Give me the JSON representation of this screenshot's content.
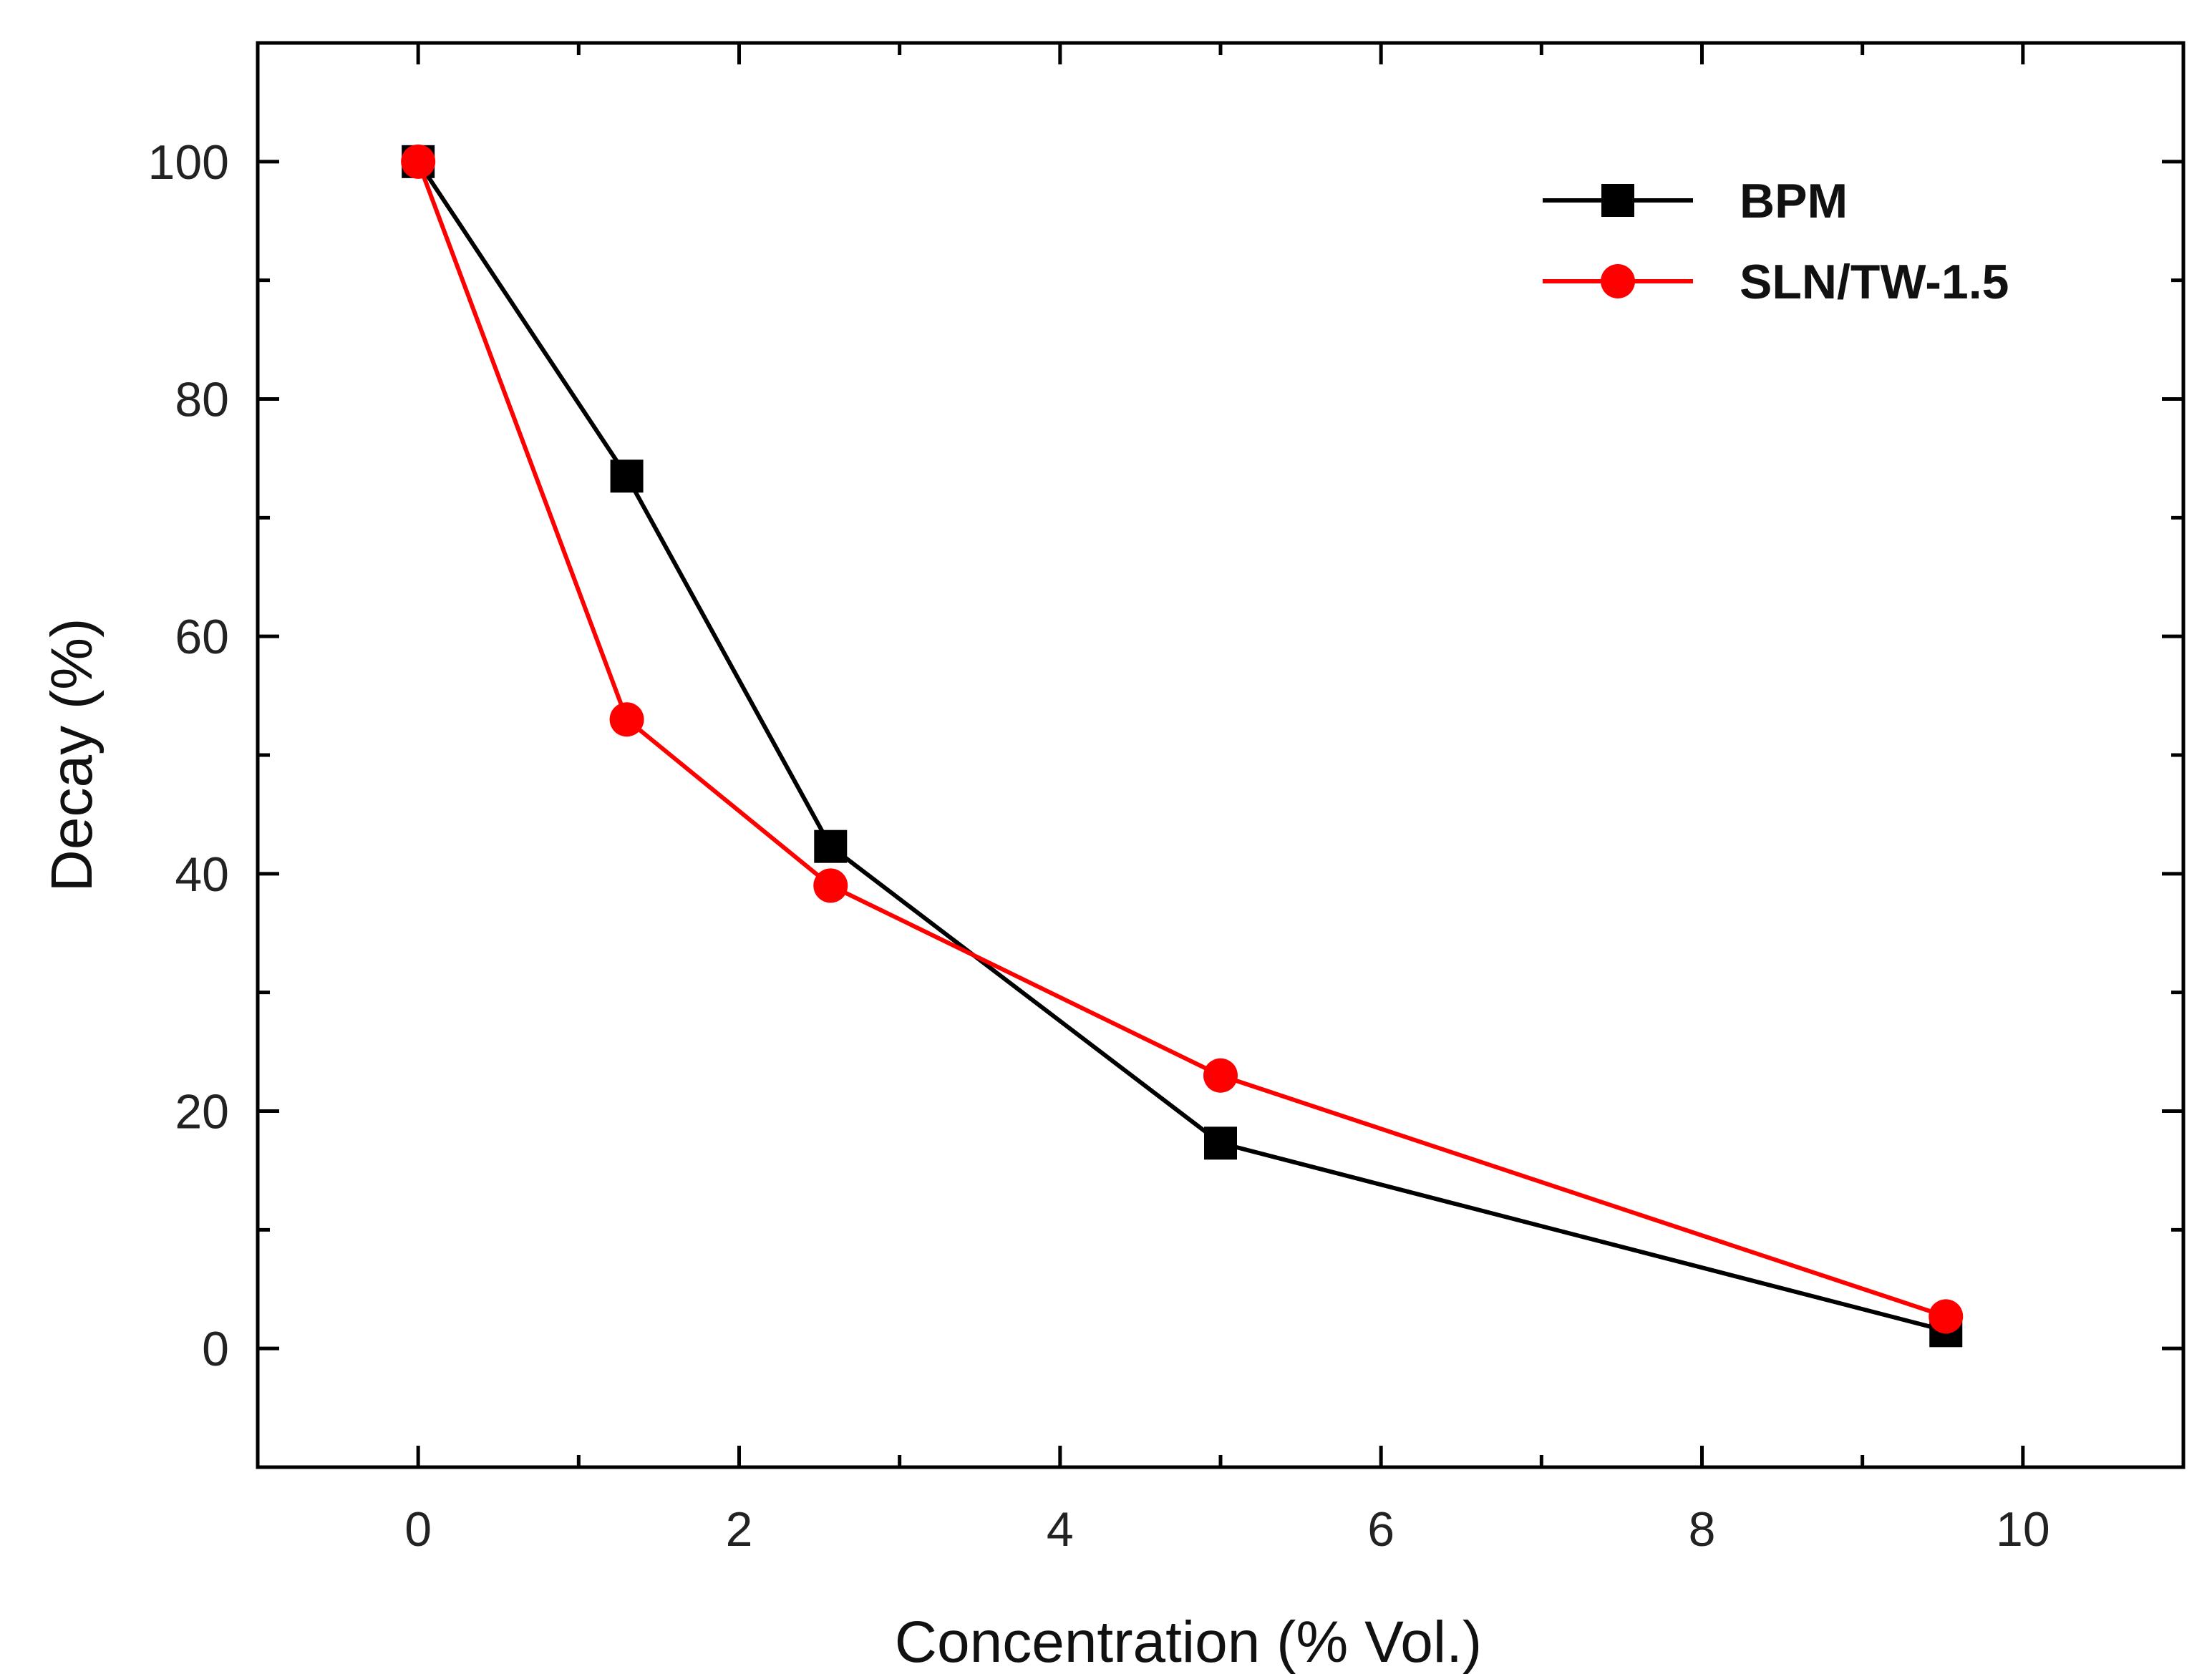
{
  "chart_data": {
    "type": "line",
    "title": "",
    "xlabel": "Concentration (% Vol.)",
    "ylabel": "Decay (%)",
    "xlim": [
      -1,
      11
    ],
    "ylim": [
      -10,
      110
    ],
    "xticks": [
      0,
      2,
      4,
      6,
      8,
      10
    ],
    "yticks": [
      0,
      20,
      40,
      60,
      80,
      100
    ],
    "xtick_labels": [
      "0",
      "2",
      "4",
      "6",
      "8",
      "10"
    ],
    "ytick_labels": [
      "0",
      "20",
      "40",
      "60",
      "80",
      "100"
    ],
    "legend_position": "top-right",
    "series": [
      {
        "name": "BPM",
        "color": "#000000",
        "marker": "square",
        "x": [
          0,
          1.3,
          2.57,
          5.0,
          9.52
        ],
        "y": [
          100,
          73.5,
          42.3,
          17.3,
          1.5
        ]
      },
      {
        "name": "SLN/TW-1.5",
        "color": "#ff0000",
        "marker": "circle",
        "x": [
          0,
          1.3,
          2.57,
          5.0,
          9.52
        ],
        "y": [
          100,
          53.0,
          39.0,
          23.0,
          2.7
        ]
      }
    ]
  }
}
